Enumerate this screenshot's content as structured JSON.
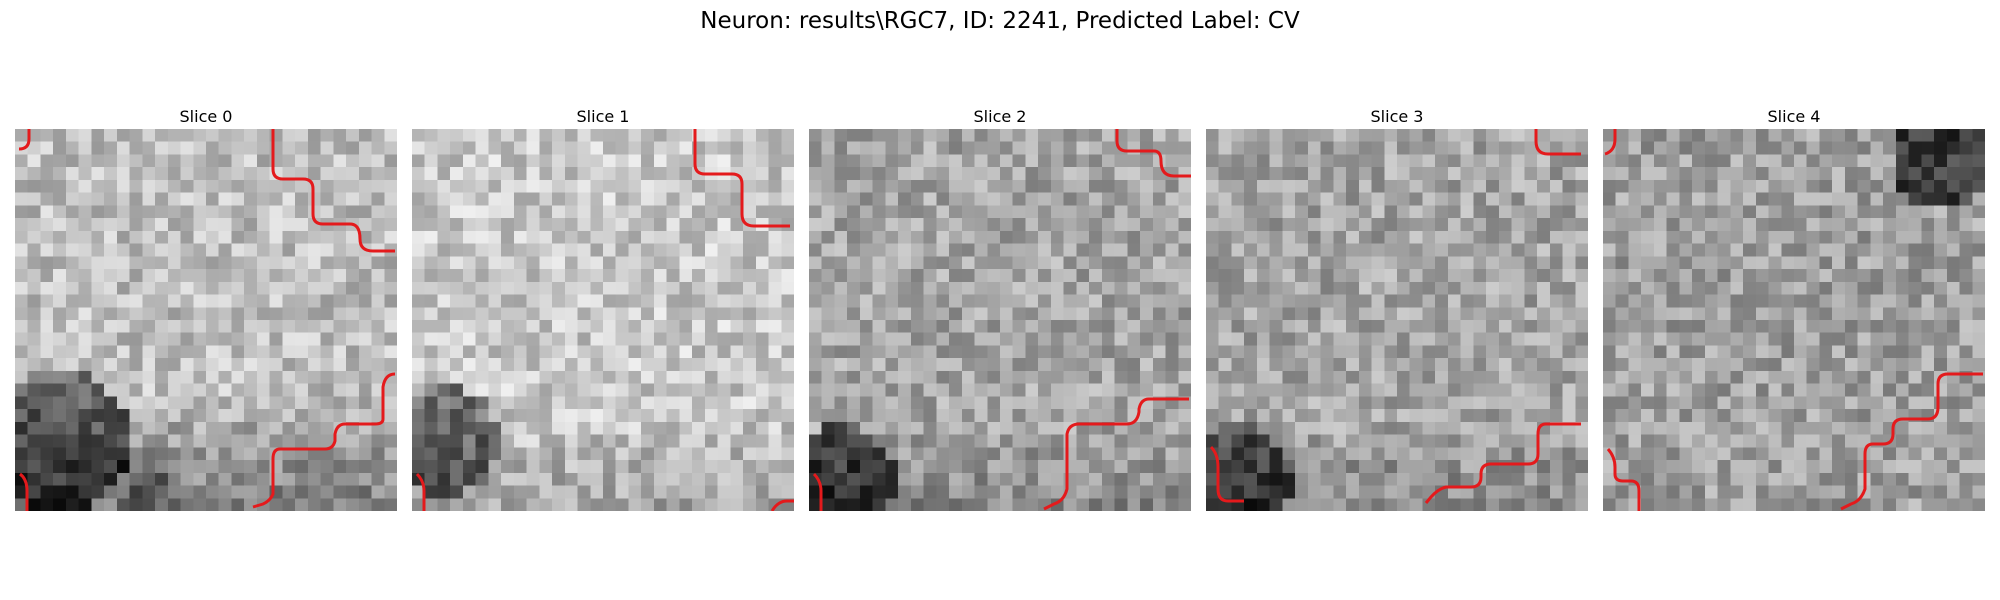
{
  "figure": {
    "title": "Neuron: results\\RGC7, ID: 2241, Predicted Label: CV",
    "contour_color": "#e41a1c",
    "colormap": "gray",
    "slices": [
      {
        "title": "Slice 0",
        "seed": 11,
        "style": "bright_dark_bottom"
      },
      {
        "title": "Slice 1",
        "seed": 23,
        "style": "bright_dark_corner"
      },
      {
        "title": "Slice 2",
        "seed": 37,
        "style": "mid_dark_corner"
      },
      {
        "title": "Slice 3",
        "seed": 51,
        "style": "mid_dark_corner"
      },
      {
        "title": "Slice 4",
        "seed": 67,
        "style": "mid_dark_topright"
      }
    ]
  }
}
